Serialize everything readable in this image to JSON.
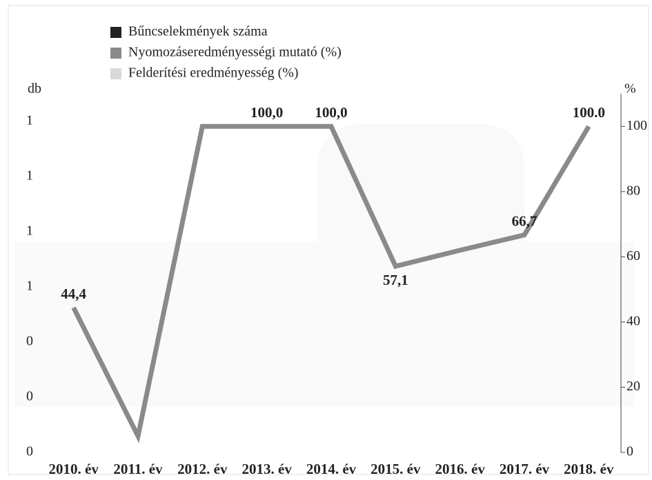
{
  "chart_data": {
    "type": "line",
    "y_label": "db",
    "y2_label": "%",
    "categories": [
      "2010. év",
      "2011. év",
      "2012. év",
      "2013. év",
      "2014. év",
      "2015. év",
      "2016. év",
      "2017. év",
      "2018. év"
    ],
    "series": [
      {
        "name": "Bűncselekmények száma",
        "color": "#222222",
        "values": [
          null,
          null,
          null,
          null,
          null,
          null,
          null,
          null,
          null
        ]
      },
      {
        "name": "Nyomozáseredményességi mutató (%)",
        "color": "#8a8a8a",
        "axis": "y2",
        "values": [
          44.4,
          5,
          100,
          100,
          100,
          57.1,
          62,
          66.7,
          100
        ],
        "value_labels": [
          "44,4",
          null,
          null,
          "100,0",
          "100,0",
          "57,1",
          null,
          "66,7",
          "100.0"
        ]
      },
      {
        "name": "Felderítési eredményesség (%)",
        "color": "#d9d9d9",
        "axis": "y2",
        "values": [
          null,
          null,
          null,
          null,
          null,
          null,
          null,
          null,
          null
        ]
      }
    ],
    "ylim": [
      0,
      1.3
    ],
    "yticks": [
      {
        "value": 0,
        "label": "0"
      },
      {
        "value": 0.2,
        "label": "0"
      },
      {
        "value": 0.4,
        "label": "0"
      },
      {
        "value": 0.6,
        "label": "1"
      },
      {
        "value": 0.8,
        "label": "1"
      },
      {
        "value": 1.0,
        "label": "1"
      },
      {
        "value": 1.2,
        "label": "1"
      }
    ],
    "y2lim": [
      0,
      110
    ],
    "y2ticks": [
      0,
      20,
      40,
      60,
      80,
      100
    ],
    "grid": false
  }
}
